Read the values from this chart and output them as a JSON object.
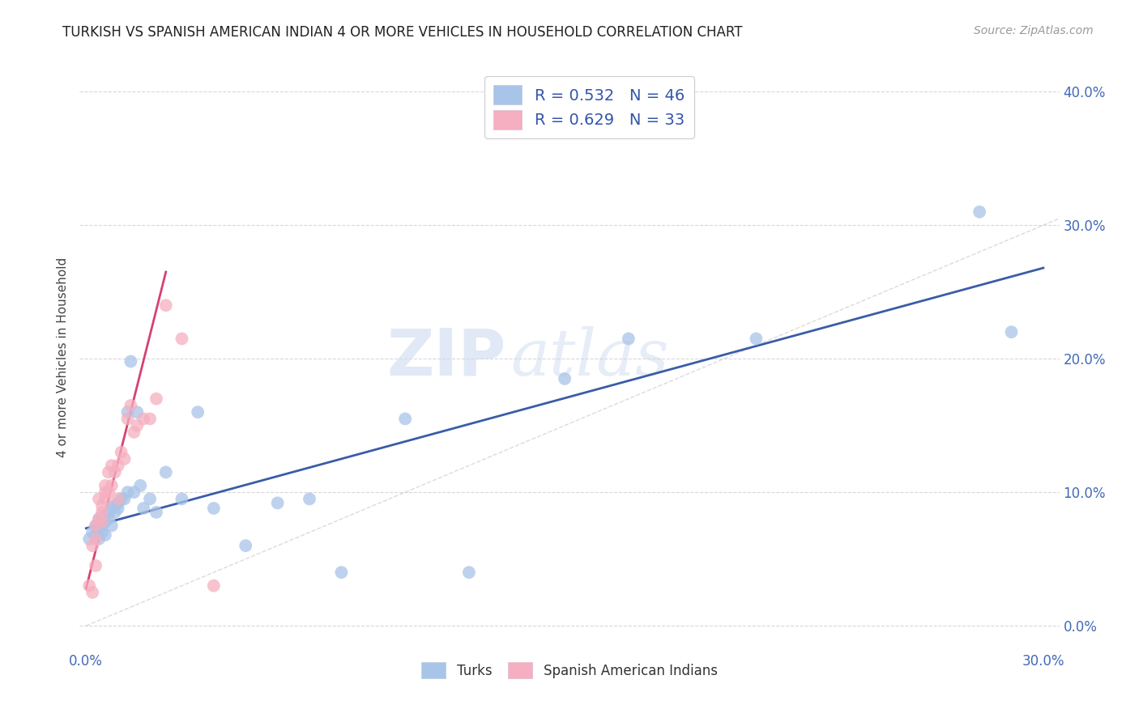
{
  "title": "TURKISH VS SPANISH AMERICAN INDIAN 4 OR MORE VEHICLES IN HOUSEHOLD CORRELATION CHART",
  "source": "Source: ZipAtlas.com",
  "turks_R": 0.532,
  "turks_N": 46,
  "spanish_R": 0.629,
  "spanish_N": 33,
  "turks_color": "#a8c4e8",
  "spanish_color": "#f5afc0",
  "turks_line_color": "#3a5ca8",
  "spanish_line_color": "#d84070",
  "diagonal_color": "#cccccc",
  "watermark_zip": "ZIP",
  "watermark_atlas": "atlas",
  "legend_label_turks": "Turks",
  "legend_label_spanish": "Spanish American Indians",
  "xlim": [
    -0.002,
    0.305
  ],
  "ylim": [
    -0.018,
    0.42
  ],
  "x_ticks": [
    0.0,
    0.05,
    0.1,
    0.15,
    0.2,
    0.25,
    0.3
  ],
  "y_ticks": [
    0.0,
    0.1,
    0.2,
    0.3,
    0.4
  ],
  "turks_x": [
    0.001,
    0.002,
    0.003,
    0.003,
    0.004,
    0.004,
    0.004,
    0.005,
    0.005,
    0.005,
    0.006,
    0.006,
    0.007,
    0.007,
    0.008,
    0.008,
    0.009,
    0.009,
    0.01,
    0.01,
    0.011,
    0.012,
    0.013,
    0.013,
    0.014,
    0.015,
    0.016,
    0.017,
    0.018,
    0.02,
    0.022,
    0.025,
    0.03,
    0.035,
    0.04,
    0.05,
    0.06,
    0.07,
    0.08,
    0.1,
    0.12,
    0.15,
    0.17,
    0.21,
    0.28,
    0.29
  ],
  "turks_y": [
    0.065,
    0.07,
    0.068,
    0.075,
    0.065,
    0.072,
    0.08,
    0.07,
    0.075,
    0.082,
    0.068,
    0.078,
    0.08,
    0.085,
    0.075,
    0.088,
    0.085,
    0.09,
    0.088,
    0.092,
    0.095,
    0.095,
    0.1,
    0.16,
    0.198,
    0.1,
    0.16,
    0.105,
    0.088,
    0.095,
    0.085,
    0.115,
    0.095,
    0.16,
    0.088,
    0.06,
    0.092,
    0.095,
    0.04,
    0.155,
    0.04,
    0.185,
    0.215,
    0.215,
    0.31,
    0.22
  ],
  "spanish_x": [
    0.001,
    0.002,
    0.002,
    0.003,
    0.003,
    0.003,
    0.004,
    0.004,
    0.005,
    0.005,
    0.005,
    0.006,
    0.006,
    0.006,
    0.007,
    0.007,
    0.008,
    0.008,
    0.009,
    0.01,
    0.01,
    0.011,
    0.012,
    0.013,
    0.014,
    0.015,
    0.016,
    0.018,
    0.02,
    0.022,
    0.025,
    0.03,
    0.04
  ],
  "spanish_y": [
    0.03,
    0.025,
    0.06,
    0.065,
    0.045,
    0.075,
    0.08,
    0.095,
    0.078,
    0.085,
    0.09,
    0.1,
    0.095,
    0.105,
    0.1,
    0.115,
    0.105,
    0.12,
    0.115,
    0.095,
    0.12,
    0.13,
    0.125,
    0.155,
    0.165,
    0.145,
    0.15,
    0.155,
    0.155,
    0.17,
    0.24,
    0.215,
    0.03
  ],
  "turks_line_x": [
    0.0,
    0.3
  ],
  "turks_line_y": [
    0.073,
    0.268
  ],
  "spanish_line_x": [
    0.0,
    0.025
  ],
  "spanish_line_y": [
    0.028,
    0.265
  ]
}
